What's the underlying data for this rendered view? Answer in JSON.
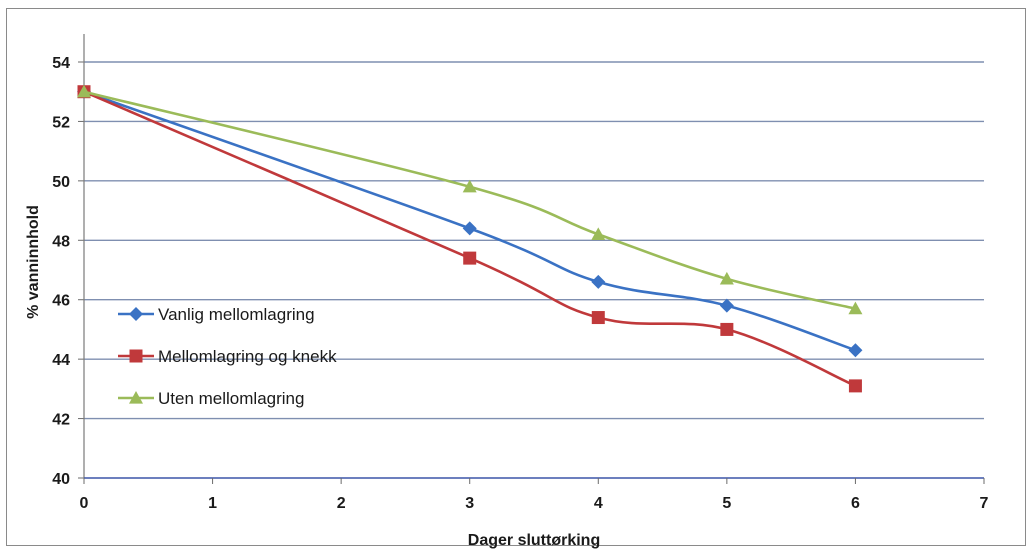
{
  "chart_data": {
    "type": "line",
    "title": "",
    "xlabel": "Dager sluttørking",
    "ylabel": "% vanninnhold",
    "xlim": [
      0,
      7
    ],
    "ylim": [
      40,
      54
    ],
    "xticks": [
      0,
      1,
      2,
      3,
      4,
      5,
      6,
      7
    ],
    "yticks": [
      40,
      42,
      44,
      46,
      48,
      50,
      52,
      54
    ],
    "grid": true,
    "legend_position": "left",
    "series": [
      {
        "name": "Vanlig mellomlagring",
        "color": "#3a72c4",
        "marker": "diamond",
        "x": [
          0,
          3,
          4,
          5,
          6
        ],
        "y": [
          53.0,
          48.4,
          46.6,
          45.8,
          44.3
        ]
      },
      {
        "name": "Mellomlagring og knekk",
        "color": "#c0393b",
        "marker": "square",
        "x": [
          0,
          3,
          4,
          5,
          6
        ],
        "y": [
          53.0,
          47.4,
          45.4,
          45.0,
          43.1
        ]
      },
      {
        "name": "Uten mellomlagring",
        "color": "#9bbb59",
        "marker": "triangle",
        "x": [
          0,
          3,
          4,
          5,
          6
        ],
        "y": [
          53.0,
          49.8,
          48.2,
          46.7,
          45.7
        ]
      }
    ]
  }
}
